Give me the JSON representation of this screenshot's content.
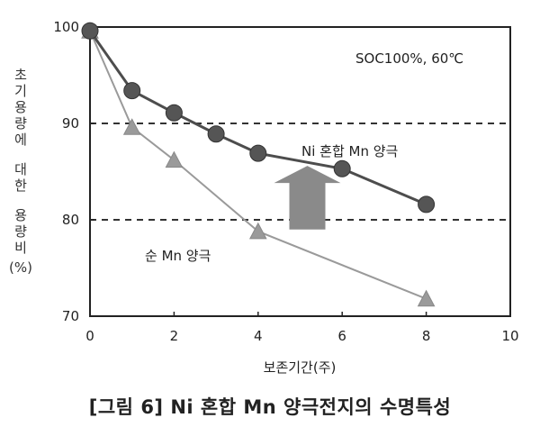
{
  "figure": {
    "caption": "[그림 6] Ni 혼합 Mn 양극전지의 수명특성"
  },
  "chart_data": {
    "type": "line",
    "title": "",
    "xlabel": "보존기간(주)",
    "ylabel": "초기용량에 대한 용량비(%)",
    "xlim": [
      0,
      10
    ],
    "ylim": [
      70,
      100
    ],
    "xticks": [
      0,
      2,
      4,
      6,
      8,
      10
    ],
    "yticks": [
      70,
      80,
      90,
      100
    ],
    "grid": false,
    "reference_lines_y": [
      90,
      80
    ],
    "annotations": {
      "condition": "SOC100%, 60℃",
      "series_label_ni": "Ni 혼합 Mn 양극",
      "series_label_mn": "순 Mn 양극"
    },
    "series": [
      {
        "name": "Ni 혼합 Mn 양극",
        "marker": "circle",
        "color": "#4d4d4d",
        "x": [
          0,
          1,
          2,
          3,
          4,
          6,
          8
        ],
        "y": [
          99.6,
          93.4,
          91.1,
          88.9,
          86.9,
          85.3,
          81.6
        ]
      },
      {
        "name": "순 Mn 양극",
        "marker": "triangle",
        "color": "#9a9a9a",
        "x": [
          0,
          1,
          2,
          4,
          8
        ],
        "y": [
          99.6,
          89.6,
          86.2,
          78.8,
          71.8
        ]
      }
    ],
    "arrow": {
      "from_y": 79,
      "to_y": 85.6,
      "x": 5,
      "color": "#8a8a8a",
      "direction": "up"
    }
  }
}
